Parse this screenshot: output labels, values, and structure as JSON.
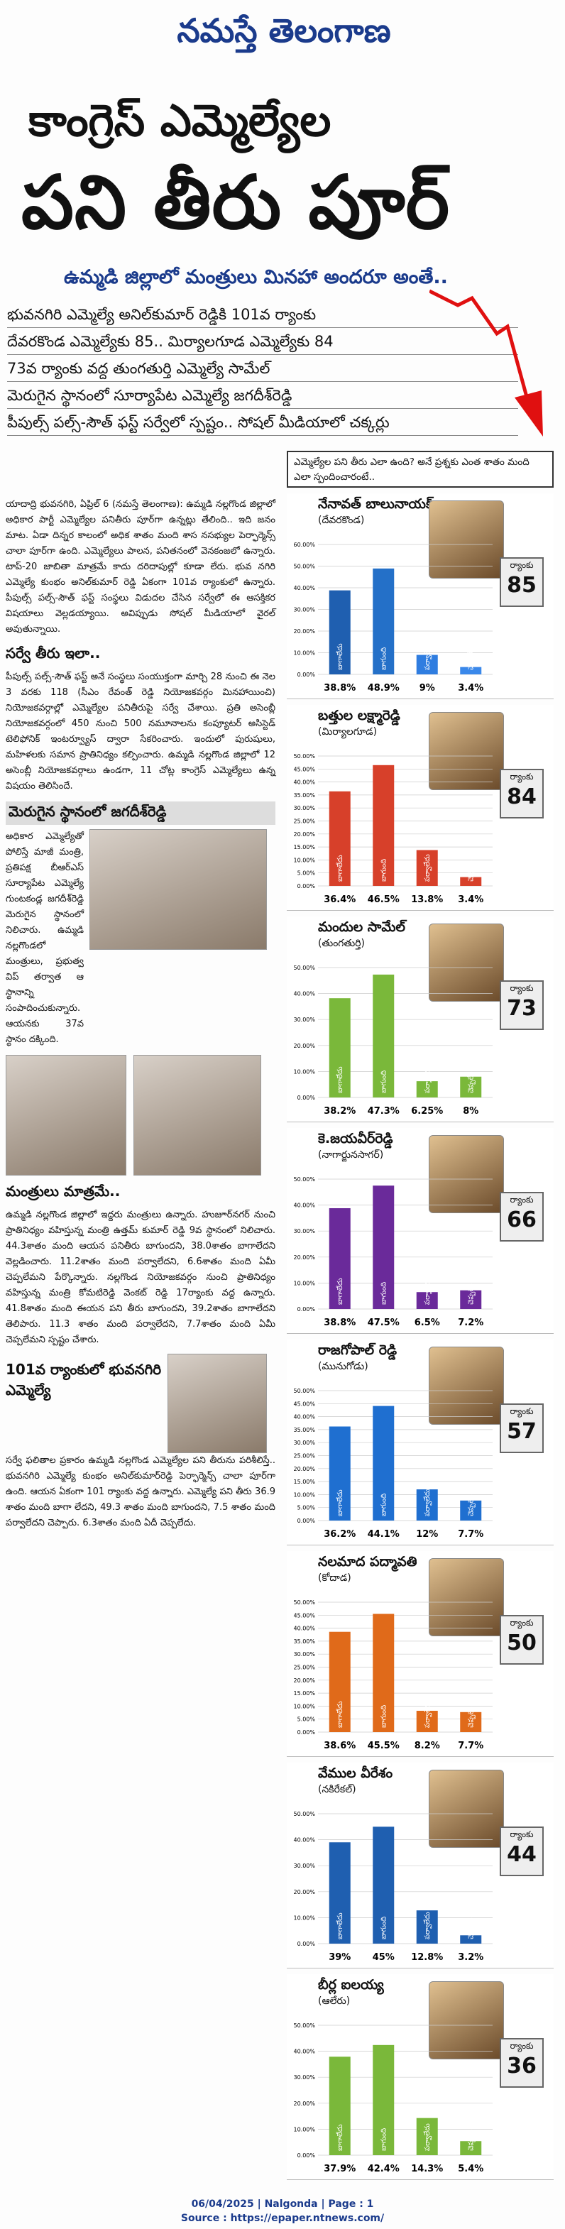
{
  "masthead": "నమస్తే తెలంగాణ",
  "headline_line1": "కాంగ్రెస్ ఎమ్మెల్యేల",
  "headline_line2": "పని తీరు పూర్",
  "subhead": "ఉమ్మడి జిల్లాలో మంత్రులు మినహా అందరూ అంతే..",
  "deck": [
    "భువనగిరి ఎమ్మెల్యే అనిల్‌కుమార్ రెడ్డికి 101వ ర్యాంకు",
    "దేవరకొండ ఎమ్మెల్యేకు 85.. మిర్యాలగూడ ఎమ్మెల్యేకు 84",
    "73వ ర్యాంకు వద్ద తుంగతుర్తి ఎమ్మెల్యే సామేల్",
    "మెరుగైన స్థానంలో సూర్యాపేట ఎమ్మెల్యే జగదీశ్‌రెడ్డి",
    "పీపుల్స్ పల్స్-సౌత్ ఫస్ట్ సర్వేలో స్పష్టం.. సోషల్ మీడియాలో చక్కర్లు"
  ],
  "question": "ఎమ్మెల్యేల పని తీరు ఎలా ఉంది? అనే ప్రశ్నకు ఎంత శాతం మంది ఎలా స్పందించారంటే..",
  "left": {
    "intro": "యాదాద్రి భువనగిరి, ఏప్రిల్ 6 (నమస్తే తెలంగాణ): ఉమ్మడి నల్లగొండ జిల్లాలో అధికార పార్టీ ఎమ్మెల్యేల పనితీరు పూర్‌గా ఉన్నట్లు తేలింది.. ఇది జనం మాట. ఏడా దిన్నర కాలంలో అధిక శాతం మంది శాస నసభ్యుల పెర్ఫార్మెన్స్ చాలా పూర్‌గా ఉంది. ఎమ్మెల్యేలు పాలన, పనితనంలో వెనకంజలో ఉన్నారు. టాప్-20 జాబితా మాత్రమే కాదు దరిదాపుల్లో కూడా లేరు. భువ నగిరి ఎమ్మెల్యే కుంభం అనిల్‌కుమార్ రెడ్డి ఏకంగా 101వ ర్యాంకులో ఉన్నారు. పీపుల్స్ పల్స్-సౌత్ ఫస్ట్ సంస్థలు విడుదల చేసిన సర్వేలో ఈ ఆసక్తికర విషయాలు వెల్లడయ్యాయి. అవిప్పుడు సోషల్ మీడియాలో వైరల్ అవుతున్నాయి.",
    "sec1": "సర్వే తీరు ఇలా..",
    "body1": "పీపుల్స్ పల్స్-సౌత్ ఫస్ట్ అనే సంస్థలు సంయుక్తంగా మార్చి 28 నుంచి ఈ నెల 3 వరకు 118 (సీఎం రేవంత్ రెడ్డి నియోజకవర్గం మినహాయించి) నియోజకవర్గాల్లో ఎమ్మెల్యేల పనితీరుపై సర్వే చేశాయి. ప్రతి అసెంబ్లీ నియోజకవర్గంలో 450 నుంచి 500 నమూనాలను కంప్యూటర్ అసిస్టెడ్ టెలిఫోనిక్ ఇంటర్వ్యూస్ ద్వారా సేకరించారు. ఇందులో పురుషులు, మహిళలకు సమాన ప్రాతినిధ్యం కల్పించారు. ఉమ్మడి నల్లగొండ జిల్లాలో 12 అసెంబ్లీ నియోజకవర్గాలు ఉండగా, 11 చోట్ల కాంగ్రెస్ ఎమ్మెల్యేలు ఉన్న విషయం తెలిసిందే.",
    "sec2": "మెరుగైన స్థానంలో జగదీశ్‌రెడ్డి",
    "body2": "అధికార ఎమ్మెల్యేతో పోలిస్తే మాజీ మంత్రి, ప్రతిపక్ష బీఆర్ఎస్ సూర్యాపేట ఎమ్మెల్యే గుంటకండ్ల జగదీశ్‌రెడ్డి మెరుగైన స్థానంలో నిలిచారు. ఉమ్మడి నల్లగొండలో మంత్రులు, ప్రభుత్వ విప్ తర్వాత ఆ స్థానాన్ని సంపాదించుకున్నారు. ఆయనకు 37వ స్థానం దక్కింది.",
    "sec3": "మంత్రులు మాత్రమే..",
    "body3": "ఉమ్మడి నల్లగొండ జిల్లాలో ఇద్దరు మంత్రులు ఉన్నారు. హుజూర్‌నగర్ నుంచి ప్రాతినిధ్యం వహిస్తున్న మంత్రి ఉత్తమ్ కుమార్ రెడ్డి 9వ స్థానంలో నిలిచారు. 44.3శాతం మంది ఆయన పనితీరు బాగుందని, 38.0శాతం బాగాలేదని వెల్లడించారు. 11.2శాతం మంది పర్వాలేదని, 6.6శాతం మంది ఏమీ చెప్పలేమని పేర్కొన్నారు. నల్లగొండ నియోజకవర్గం నుంచి ప్రాతినిధ్యం వహిస్తున్న మంత్రి కోమటిరెడ్డి వెంకట్ రెడ్డి 17ర్యాంకు వద్ద ఉన్నారు. 41.8శాతం మంది ఈయన పని తీరు బాగుందని, 39.2శాతం బాగాలేదని తెలిపారు. 11.3 శాతం మంది పర్వాలేదని, 7.7శాతం మంది ఏమీ చెప్పలేమని స్పష్టం చేశారు.",
    "sec4": "101వ ర్యాంకులో భువనగిరి ఎమ్మెల్యే",
    "body4": "సర్వే ఫలితాల ప్రకారం ఉమ్మడి నల్లగొండ ఎమ్మెల్యేల పని తీరును పరిశీలిస్తే.. భువనగిరి ఎమ్మెల్యే కుంభం అనిల్‌కుమార్‌రెడ్డి పెర్ఫార్మెన్స్ చాలా పూర్‌గా ఉంది. ఆయన ఏకంగా 101 ర్యాంకు వద్ద ఉన్నారు. ఎమ్మెల్యే పని తీరు 36.9 శాతం మంది బాగా లేదని, 49.3 శాతం మంది బాగుందని, 7.5 శాతం మంది పర్వాలేదని చెప్పారు. 6.3శాతం మంది ఏదీ చెప్పలేదు."
  },
  "rank_label": "ర్యాంకు",
  "bar_labels": [
    "బాగాలేదు",
    "బాగుంది",
    "పర్వాలేదు",
    "చెప్పలేం"
  ],
  "colors": {
    "good": "#1f5fb0",
    "bad": "#7b2ea8",
    "ok": "#1f6fd0",
    "na": "#2f7de0"
  },
  "panels": [
    {
      "name": "నేనావత్ బాలునాయక్",
      "cons": "(దేవరకొండ)",
      "rank": "85",
      "palette": [
        "#1f5fb0",
        "#2470c8",
        "#2f7de0",
        "#3a88ea"
      ],
      "labels": [
        "38.8%",
        "48.9%",
        "9%",
        "3.4%"
      ],
      "ymax": 60,
      "ticks": [
        "0.00%",
        "10.00%",
        "20.00%",
        "30.00%",
        "40.00%",
        "50.00%",
        "60.00%"
      ]
    },
    {
      "name": "బత్తుల లక్ష్మారెడ్డి",
      "cons": "(మిర్యాలగూడ)",
      "rank": "84",
      "palette": [
        "#d7402a",
        "#d7402a",
        "#d7402a",
        "#d7402a"
      ],
      "labels": [
        "36.4%",
        "46.5%",
        "13.8%",
        "3.4%"
      ],
      "ymax": 50,
      "ticks": [
        "0.00%",
        "5.00%",
        "10.00%",
        "15.00%",
        "20.00%",
        "25.00%",
        "30.00%",
        "35.00%",
        "40.00%",
        "45.00%",
        "50.00%"
      ]
    },
    {
      "name": "మందుల సామేల్",
      "cons": "(తుంగతుర్తి)",
      "rank": "73",
      "palette": [
        "#7ab83a",
        "#7ab83a",
        "#7ab83a",
        "#7ab83a"
      ],
      "labels": [
        "38.2%",
        "47.3%",
        "6.25%",
        "8%"
      ],
      "ymax": 50,
      "ticks": [
        "0.00%",
        "10.00%",
        "20.00%",
        "30.00%",
        "40.00%",
        "50.00%"
      ]
    },
    {
      "name": "కె.జయవీర్‌రెడ్డి",
      "cons": "(నాగార్జునసాగర్)",
      "rank": "66",
      "palette": [
        "#6a2a9a",
        "#6a2a9a",
        "#6a2a9a",
        "#6a2a9a"
      ],
      "labels": [
        "38.8%",
        "47.5%",
        "6.5%",
        "7.2%"
      ],
      "ymax": 50,
      "ticks": [
        "0.00%",
        "10.00%",
        "20.00%",
        "30.00%",
        "40.00%",
        "50.00%"
      ]
    },
    {
      "name": "రాజగోపాల్ రెడ్డి",
      "cons": "(మునుగోడు)",
      "rank": "57",
      "palette": [
        "#1f6fd0",
        "#1f6fd0",
        "#1f6fd0",
        "#1f6fd0"
      ],
      "labels": [
        "36.2%",
        "44.1%",
        "12%",
        "7.7%"
      ],
      "ymax": 50,
      "ticks": [
        "0.00%",
        "5.00%",
        "10.00%",
        "15.00%",
        "20.00%",
        "25.00%",
        "30.00%",
        "35.00%",
        "40.00%",
        "45.00%",
        "50.00%"
      ]
    },
    {
      "name": "నలమాద పద్మావతి",
      "cons": "(కోదాడ)",
      "rank": "50",
      "palette": [
        "#e06a1a",
        "#e06a1a",
        "#e06a1a",
        "#e06a1a"
      ],
      "labels": [
        "38.6%",
        "45.5%",
        "8.2%",
        "7.7%"
      ],
      "ymax": 50,
      "ticks": [
        "0.00%",
        "5.00%",
        "10.00%",
        "15.00%",
        "20.00%",
        "25.00%",
        "30.00%",
        "35.00%",
        "40.00%",
        "45.00%",
        "50.00%"
      ]
    },
    {
      "name": "వేముల వీరేశం",
      "cons": "(నకిరేకల్)",
      "rank": "44",
      "palette": [
        "#1f5fb0",
        "#1f5fb0",
        "#1f5fb0",
        "#1f5fb0"
      ],
      "labels": [
        "39%",
        "45%",
        "12.8%",
        "3.2%"
      ],
      "ymax": 50,
      "ticks": [
        "0.00%",
        "10.00%",
        "20.00%",
        "30.00%",
        "40.00%",
        "50.00%"
      ]
    },
    {
      "name": "బీర్ల ఐలయ్య",
      "cons": "(ఆలేరు)",
      "rank": "36",
      "palette": [
        "#7ab83a",
        "#7ab83a",
        "#7ab83a",
        "#7ab83a"
      ],
      "labels": [
        "37.9%",
        "42.4%",
        "14.3%",
        "5.4%"
      ],
      "ymax": 50,
      "ticks": [
        "0.00%",
        "10.00%",
        "20.00%",
        "30.00%",
        "40.00%",
        "50.00%"
      ]
    }
  ],
  "chart_data": [
    {
      "type": "bar",
      "categories": [
        "బాగాలేదు",
        "బాగుంది",
        "పర్వాలేదు",
        "చెప్పలేం"
      ],
      "title": "నేనావత్ బాలునాయక్",
      "values": [
        38.8,
        48.9,
        9,
        3.4
      ],
      "ylim": [
        0,
        60
      ]
    },
    {
      "type": "bar",
      "categories": [
        "బాగాలేదు",
        "బాగుంది",
        "పర్వాలేదు",
        "చెప్పలేం"
      ],
      "title": "బత్తుల లక్ష్మారెడ్డి",
      "values": [
        36.4,
        46.5,
        13.8,
        3.4
      ],
      "ylim": [
        0,
        50
      ]
    },
    {
      "type": "bar",
      "categories": [
        "బాగాలేదు",
        "బాగుంది",
        "పర్వాలేదు",
        "చెప్పలేం"
      ],
      "title": "మందుల సామేల్",
      "values": [
        38.2,
        47.3,
        6.25,
        8
      ],
      "ylim": [
        0,
        50
      ]
    },
    {
      "type": "bar",
      "categories": [
        "బాగాలేదు",
        "బాగుంది",
        "పర్వాలేదు",
        "చెప్పలేం"
      ],
      "title": "కె.జయవీర్‌రెడ్డి",
      "values": [
        38.8,
        47.5,
        6.5,
        7.2
      ],
      "ylim": [
        0,
        50
      ]
    },
    {
      "type": "bar",
      "categories": [
        "బాగాలేదు",
        "బాగుంది",
        "పర్వాలేదు",
        "చెప్పలేం"
      ],
      "title": "రాజగోపాల్ రెడ్డి",
      "values": [
        36.2,
        44.1,
        12,
        7.7
      ],
      "ylim": [
        0,
        50
      ]
    },
    {
      "type": "bar",
      "categories": [
        "బాగాలేదు",
        "బాగుంది",
        "పర్వాలేదు",
        "చెప్పలేం"
      ],
      "title": "నలమాద పద్మావతి",
      "values": [
        38.6,
        45.5,
        8.2,
        7.7
      ],
      "ylim": [
        0,
        50
      ]
    },
    {
      "type": "bar",
      "categories": [
        "బాగాలేదు",
        "బాగుంది",
        "పర్వాలేదు",
        "చెప్పలేం"
      ],
      "title": "వేముల వీరేశం",
      "values": [
        39,
        45,
        12.8,
        3.2
      ],
      "ylim": [
        0,
        50
      ]
    },
    {
      "type": "bar",
      "categories": [
        "బాగాలేదు",
        "బాగుంది",
        "పర్వాలేదు",
        "చెప్పలేం"
      ],
      "title": "బీర్ల ఐలయ్య",
      "values": [
        37.9,
        42.4,
        14.3,
        5.4
      ],
      "ylim": [
        0,
        50
      ]
    }
  ],
  "footer_line1": "06/04/2025 | Nalgonda | Page : 1",
  "footer_line2": "Source : https://epaper.ntnews.com/"
}
